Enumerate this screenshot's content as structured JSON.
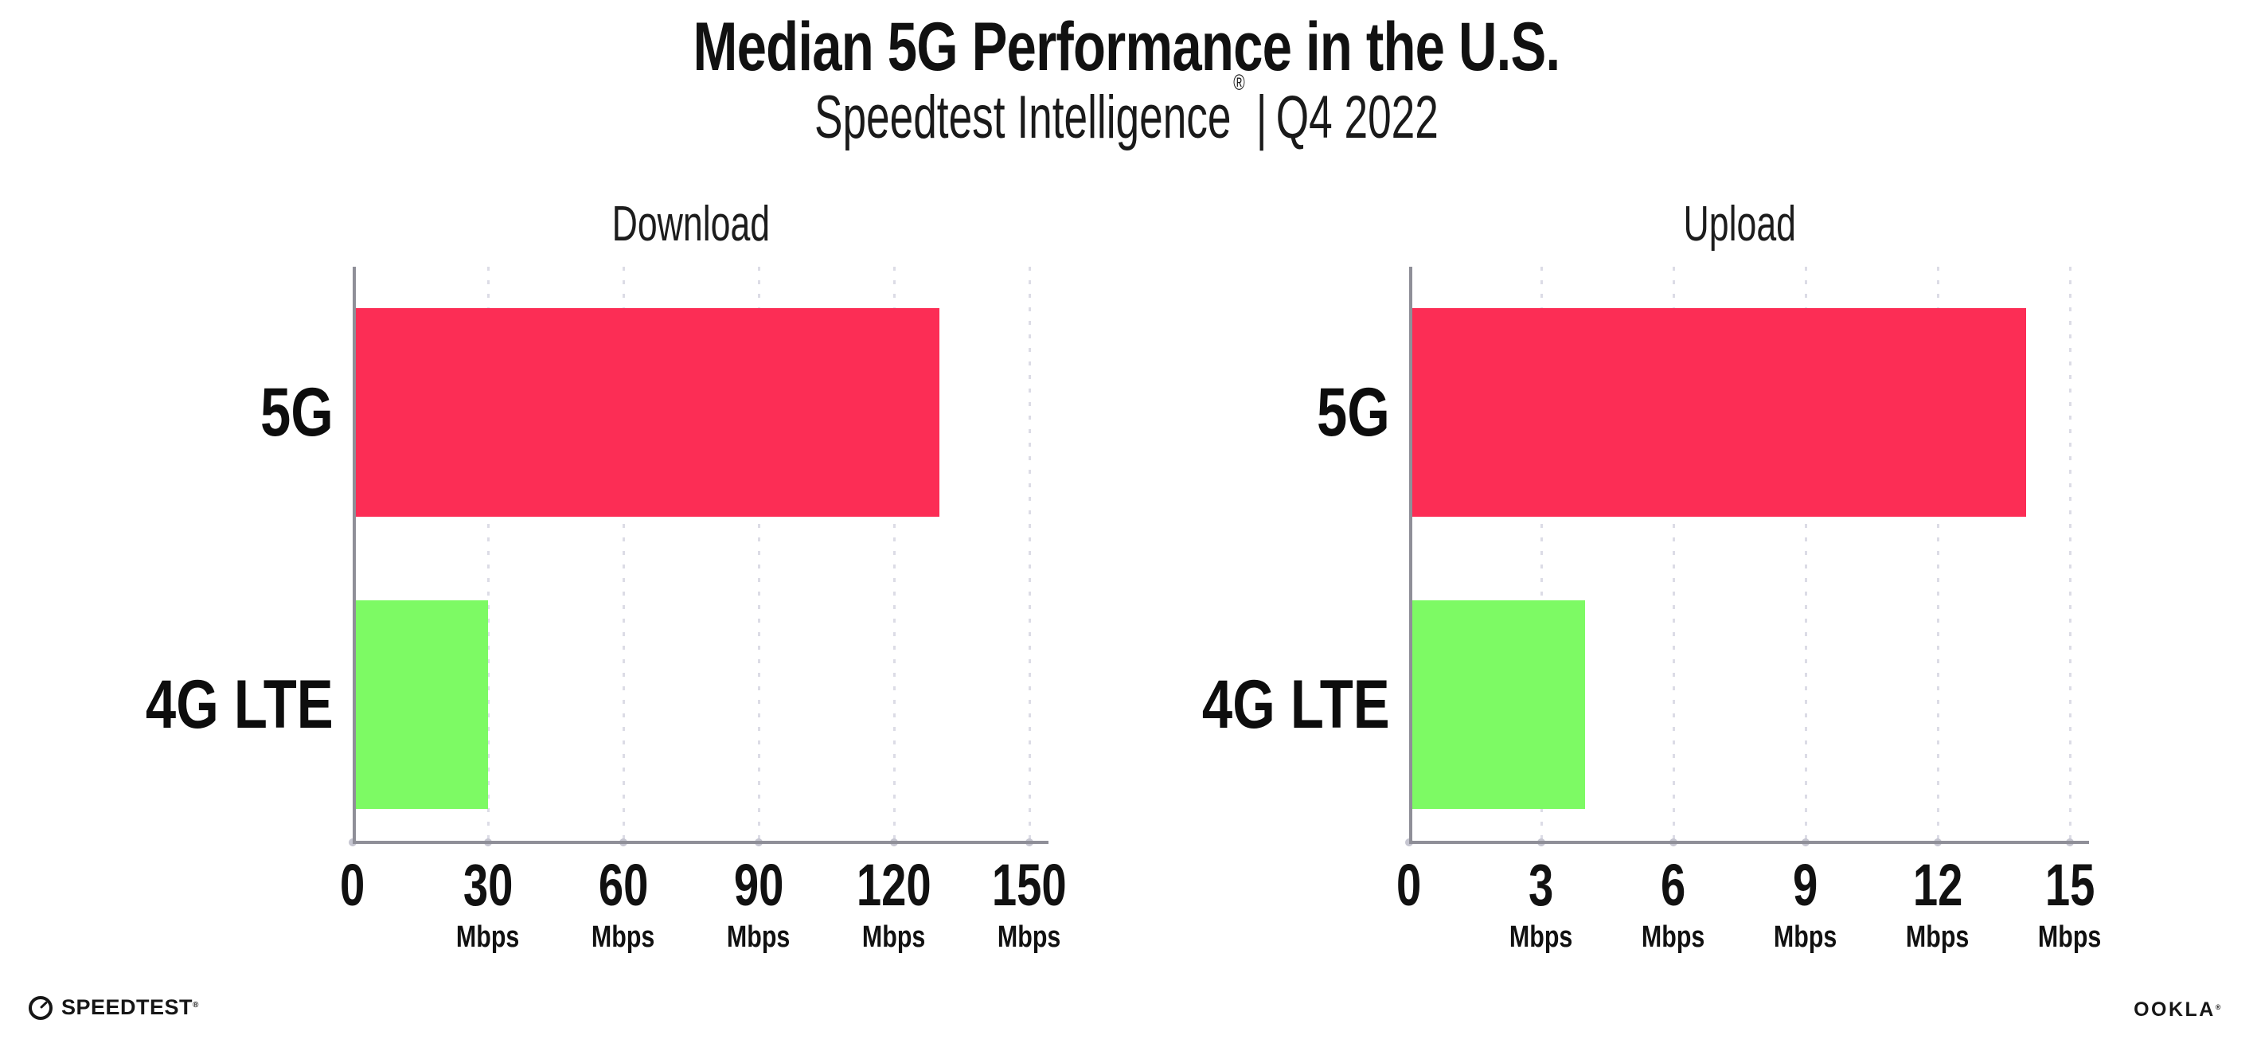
{
  "header": {
    "title": "Median 5G Performance in the U.S.",
    "subtitle": {
      "brand": "Speedtest Intelligence",
      "registered": "®",
      "separator": "|",
      "period": "Q4 2022"
    }
  },
  "footer": {
    "speedtest_logo_text": "SPEEDTEST",
    "speedtest_logo_registered": "®",
    "speedtest_icon": "gauge-icon",
    "ookla_logo_text": "OOKLA",
    "ookla_logo_registered": "®"
  },
  "colors": {
    "bar_5g": "#FC2D55",
    "bar_4g_lte": "#7DFA64",
    "axis": "#8f8f98",
    "gridline": "#dcdce6",
    "tick_dot": "#c6c6d1",
    "text": "#111111",
    "background": "#ffffff"
  },
  "chart_data": [
    {
      "type": "bar",
      "orientation": "horizontal",
      "title": "Download",
      "categories": [
        "5G",
        "4G LTE"
      ],
      "values": [
        130,
        30
      ],
      "unit": "Mbps",
      "xlim": [
        0,
        150
      ],
      "xticks": [
        0,
        30,
        60,
        90,
        120,
        150
      ],
      "grid": "vertical-dotted",
      "bar_colors": [
        "#FC2D55",
        "#7DFA64"
      ],
      "legend": "none"
    },
    {
      "type": "bar",
      "orientation": "horizontal",
      "title": "Upload",
      "categories": [
        "5G",
        "4G LTE"
      ],
      "values": [
        14,
        4
      ],
      "unit": "Mbps",
      "xlim": [
        0,
        15
      ],
      "xticks": [
        0,
        3,
        6,
        9,
        12,
        15
      ],
      "grid": "vertical-dotted",
      "bar_colors": [
        "#FC2D55",
        "#7DFA64"
      ],
      "legend": "none"
    }
  ]
}
